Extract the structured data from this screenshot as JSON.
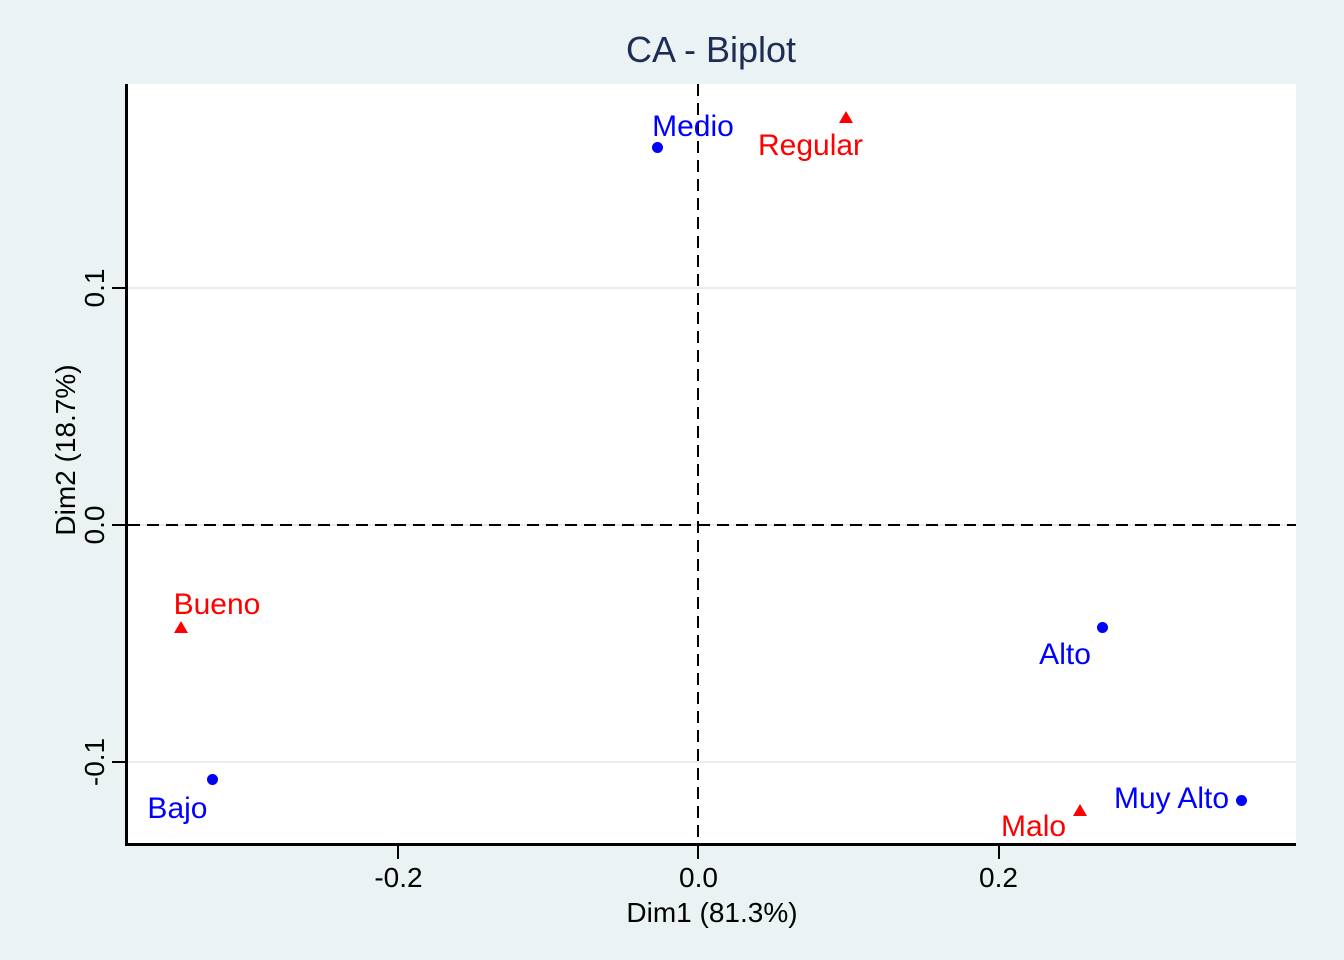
{
  "title": "CA - Biplot",
  "colors": {
    "figure_background": "#eaf2f3",
    "plot_background": "#ffffff",
    "title_text": "#1e2d53",
    "axis_text": "#000000",
    "gridline": "#e7eef3",
    "reference_line": "#000000",
    "row_points": "#0000ff",
    "column_points": "#ff0000"
  },
  "chart_data": {
    "type": "scatter",
    "title": "CA - Biplot",
    "xlabel": "Dim1 (81.3%)",
    "ylabel": "Dim2 (18.7%)",
    "xlim": [
      -0.3803,
      0.3983
    ],
    "ylim": [
      -0.1339,
      0.1857
    ],
    "x_ticks": [
      {
        "value": -0.2,
        "label": "-0.2"
      },
      {
        "value": 0.0,
        "label": "0.0"
      },
      {
        "value": 0.2,
        "label": "0.2"
      }
    ],
    "y_ticks": [
      {
        "value": 0.1,
        "label": "0.1"
      },
      {
        "value": 0.0,
        "label": "0.0"
      },
      {
        "value": -0.1,
        "label": "-0.1"
      }
    ],
    "grid": "horizontal",
    "legend": "none",
    "reference_lines": [
      {
        "axis": "x",
        "value": 0,
        "style": "dashed"
      },
      {
        "axis": "y",
        "value": 0,
        "style": "dashed"
      }
    ],
    "series": [
      {
        "name": "rows",
        "marker": "circle",
        "color": "#0000ff",
        "points": [
          {
            "label": "Medio",
            "x": -0.027,
            "y": 0.159,
            "label_offset": [
              35,
              -20
            ]
          },
          {
            "label": "Bajo",
            "x": -0.324,
            "y": -0.107,
            "label_offset": [
              -35,
              30
            ]
          },
          {
            "label": "Alto",
            "x": 0.269,
            "y": -0.043,
            "label_offset": [
              -37,
              28
            ]
          },
          {
            "label": "Muy Alto",
            "x": 0.362,
            "y": -0.116,
            "label_offset": [
              -70,
              -1
            ]
          }
        ]
      },
      {
        "name": "columns",
        "marker": "triangle",
        "color": "#ff0000",
        "points": [
          {
            "label": "Regular",
            "x": 0.098,
            "y": 0.172,
            "label_offset": [
              -35,
              29
            ]
          },
          {
            "label": "Bueno",
            "x": -0.345,
            "y": -0.043,
            "label_offset": [
              36,
              -22
            ]
          },
          {
            "label": "Malo",
            "x": 0.254,
            "y": -0.12,
            "label_offset": [
              -46,
              17
            ]
          }
        ]
      }
    ]
  }
}
